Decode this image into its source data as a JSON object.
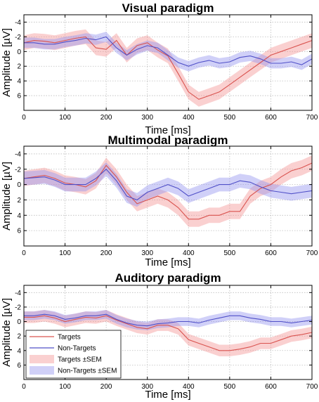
{
  "chart_data": [
    {
      "type": "line",
      "title": "Visual paradigm",
      "xlabel": "Time [ms]",
      "ylabel": "Amplitude [µV]",
      "xlim": [
        0,
        700
      ],
      "ylim": [
        -5,
        8
      ],
      "y_reversed": true,
      "xticks": [
        0,
        100,
        200,
        300,
        400,
        500,
        600,
        700
      ],
      "yticks": [
        -4,
        -2,
        0,
        2,
        4,
        6
      ],
      "x": [
        0,
        25,
        50,
        75,
        100,
        125,
        150,
        175,
        200,
        225,
        250,
        275,
        300,
        325,
        350,
        375,
        400,
        425,
        450,
        475,
        500,
        525,
        550,
        575,
        600,
        625,
        650,
        675,
        700
      ],
      "series": [
        {
          "name": "Targets",
          "color": "#d9534f",
          "sem": 1.0,
          "values": [
            -1.2,
            -1.5,
            -1.4,
            -1.2,
            -1.5,
            -1.8,
            -2.0,
            -0.5,
            -0.3,
            -1.5,
            0.5,
            -0.8,
            -1.2,
            -0.2,
            0.6,
            3.0,
            5.5,
            6.5,
            6.0,
            5.5,
            4.5,
            3.5,
            2.5,
            1.5,
            0.5,
            0.0,
            -0.5,
            -1.0,
            -1.5
          ]
        },
        {
          "name": "Non-Targets",
          "color": "#5050c8",
          "sem": 0.7,
          "values": [
            -1.2,
            -1.2,
            -1.0,
            -1.0,
            -1.3,
            -1.5,
            -1.8,
            -1.6,
            -2.0,
            -0.5,
            0.5,
            -0.3,
            -0.8,
            -0.5,
            0.5,
            1.5,
            2.0,
            1.5,
            1.2,
            1.6,
            1.4,
            0.8,
            0.6,
            1.0,
            1.6,
            1.6,
            1.4,
            1.8,
            1.0
          ]
        }
      ]
    },
    {
      "type": "line",
      "title": "Multimodal paradigm",
      "xlabel": "Time [ms]",
      "ylabel": "Amplitude [µV]",
      "xlim": [
        0,
        700
      ],
      "ylim": [
        -5,
        8
      ],
      "y_reversed": true,
      "xticks": [
        0,
        100,
        200,
        300,
        400,
        500,
        600,
        700
      ],
      "yticks": [
        -4,
        -2,
        0,
        2,
        4,
        6
      ],
      "x": [
        0,
        25,
        50,
        75,
        100,
        125,
        150,
        175,
        200,
        225,
        250,
        275,
        300,
        325,
        350,
        375,
        400,
        425,
        450,
        475,
        500,
        525,
        550,
        575,
        600,
        625,
        650,
        675,
        700
      ],
      "series": [
        {
          "name": "Targets",
          "color": "#d9534f",
          "sem": 1.0,
          "values": [
            -0.8,
            -1.0,
            -1.2,
            -0.8,
            -0.2,
            0.0,
            0.3,
            -0.5,
            -2.5,
            -1.0,
            1.0,
            2.5,
            2.0,
            1.5,
            2.0,
            3.0,
            4.5,
            4.5,
            4.0,
            4.0,
            3.5,
            3.5,
            1.5,
            0.5,
            0.0,
            -1.0,
            -1.8,
            -2.2,
            -2.8
          ]
        },
        {
          "name": "Non-Targets",
          "color": "#5050c8",
          "sem": 0.9,
          "values": [
            -0.8,
            -0.9,
            -1.0,
            -0.6,
            0.0,
            0.0,
            0.0,
            -0.8,
            -2.0,
            -0.5,
            1.5,
            2.0,
            1.0,
            0.5,
            0.0,
            0.5,
            1.5,
            1.0,
            0.5,
            0.0,
            0.0,
            -0.5,
            -0.3,
            0.3,
            0.8,
            1.0,
            1.2,
            1.0,
            0.8
          ]
        }
      ]
    },
    {
      "type": "line",
      "title": "Auditory paradigm",
      "xlabel": "Time [ms]",
      "ylabel": "Amplitude [µV]",
      "xlim": [
        0,
        700
      ],
      "ylim": [
        -5,
        8
      ],
      "y_reversed": true,
      "xticks": [
        0,
        100,
        200,
        300,
        400,
        500,
        600,
        700
      ],
      "yticks": [
        -4,
        -2,
        0,
        2,
        4,
        6
      ],
      "x": [
        0,
        25,
        50,
        75,
        100,
        125,
        150,
        175,
        200,
        225,
        250,
        275,
        300,
        325,
        350,
        375,
        400,
        425,
        450,
        475,
        500,
        525,
        550,
        575,
        600,
        625,
        650,
        675,
        700
      ],
      "series": [
        {
          "name": "Targets",
          "color": "#d9534f",
          "sem": 0.8,
          "values": [
            -0.6,
            -0.6,
            -0.8,
            -0.5,
            0.0,
            -0.3,
            -0.6,
            -0.5,
            -0.8,
            -0.2,
            0.3,
            0.8,
            1.0,
            0.5,
            0.5,
            1.0,
            2.5,
            3.0,
            3.5,
            4.0,
            4.0,
            3.8,
            3.5,
            3.0,
            3.0,
            2.5,
            2.0,
            1.8,
            1.5
          ]
        },
        {
          "name": "Non-Targets",
          "color": "#5050c8",
          "sem": 0.6,
          "values": [
            -0.8,
            -0.8,
            -1.0,
            -0.8,
            -0.3,
            -0.5,
            -0.8,
            -0.8,
            -1.0,
            -0.3,
            0.2,
            0.5,
            0.6,
            0.3,
            0.2,
            0.0,
            0.0,
            0.2,
            -0.2,
            -0.5,
            -0.8,
            -0.8,
            -0.5,
            -0.3,
            0.0,
            0.0,
            0.2,
            0.0,
            -0.2
          ]
        }
      ],
      "legend": {
        "placement": "bottom-left",
        "entries": [
          "Targets",
          "Non-Targets",
          "Targets ±SEM",
          "Non-Targets ±SEM"
        ]
      }
    }
  ]
}
